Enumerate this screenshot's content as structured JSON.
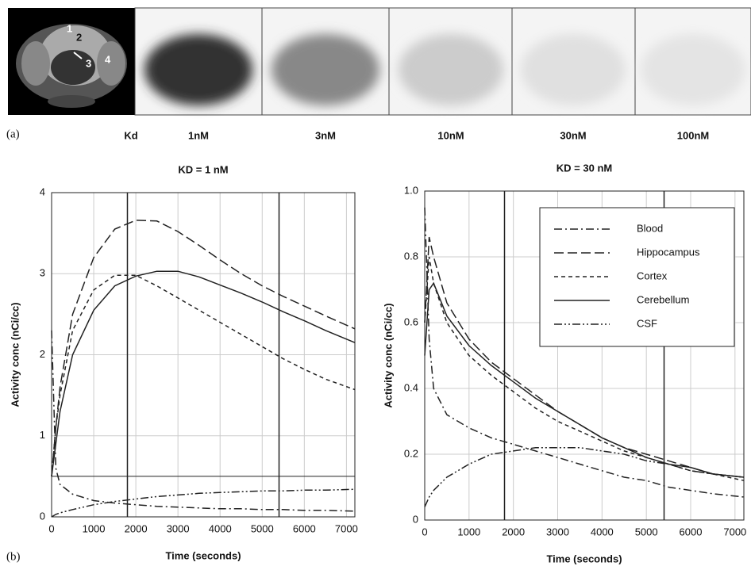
{
  "image_panel": {
    "label": "(a)",
    "captions": [
      "Kd",
      "1nM",
      "3nM",
      "10nM",
      "30nM",
      "100nM"
    ],
    "region_numbers": [
      "1",
      "2",
      "3",
      "4"
    ]
  },
  "plot_panel_label": "(b)",
  "chart_data": [
    {
      "type": "line",
      "title": "KD = 1 nM",
      "x_label": "Time (seconds)",
      "y_label": "Activity conc (nCi/cc)",
      "x": [
        0,
        100,
        200,
        500,
        1000,
        1500,
        2000,
        2500,
        3000,
        3500,
        4000,
        4500,
        5000,
        5500,
        6000,
        6500,
        7200
      ],
      "xlim": [
        0,
        7200
      ],
      "xticks": [
        0,
        1000,
        2000,
        3000,
        4000,
        5000,
        6000,
        7000
      ],
      "ylim": [
        0,
        4
      ],
      "yticks": [
        0,
        1,
        2,
        3,
        4
      ],
      "grid": true,
      "legend": false,
      "vlines": [
        1800,
        5400
      ],
      "hlines": [
        0.5
      ],
      "series": [
        {
          "name": "Blood",
          "color": "#222222",
          "dash": "dash-dot",
          "values": [
            2.3,
            0.6,
            0.4,
            0.28,
            0.2,
            0.17,
            0.15,
            0.13,
            0.12,
            0.11,
            0.1,
            0.1,
            0.09,
            0.09,
            0.08,
            0.08,
            0.07
          ]
        },
        {
          "name": "Hippocampus",
          "color": "#222222",
          "dash": "long-dash",
          "values": [
            0.5,
            1.1,
            1.6,
            2.5,
            3.2,
            3.55,
            3.66,
            3.65,
            3.52,
            3.35,
            3.17,
            3.0,
            2.85,
            2.72,
            2.6,
            2.48,
            2.32
          ]
        },
        {
          "name": "Cortex",
          "color": "#222222",
          "dash": "short-dash",
          "values": [
            0.5,
            1.1,
            1.5,
            2.3,
            2.8,
            2.98,
            2.98,
            2.85,
            2.7,
            2.55,
            2.4,
            2.25,
            2.1,
            1.95,
            1.82,
            1.7,
            1.57
          ]
        },
        {
          "name": "Cerebellum",
          "color": "#222222",
          "dash": "solid",
          "values": [
            0.5,
            0.9,
            1.3,
            2.0,
            2.55,
            2.85,
            2.97,
            3.03,
            3.03,
            2.96,
            2.86,
            2.76,
            2.65,
            2.53,
            2.42,
            2.3,
            2.15
          ]
        },
        {
          "name": "CSF",
          "color": "#222222",
          "dash": "dash-dot-dot",
          "values": [
            0,
            0.03,
            0.05,
            0.09,
            0.15,
            0.19,
            0.22,
            0.25,
            0.27,
            0.29,
            0.3,
            0.31,
            0.32,
            0.32,
            0.33,
            0.33,
            0.34
          ]
        }
      ]
    },
    {
      "type": "line",
      "title": "KD = 30 nM",
      "x_label": "Time (seconds)",
      "y_label": "Activity conc (nCi/cc)",
      "x": [
        0,
        100,
        200,
        500,
        1000,
        1500,
        2000,
        2500,
        3000,
        3500,
        4000,
        4500,
        5000,
        5500,
        6000,
        6500,
        7200
      ],
      "xlim": [
        0,
        7200
      ],
      "xticks": [
        0,
        1000,
        2000,
        3000,
        4000,
        5000,
        6000,
        7000
      ],
      "ylim": [
        0,
        1
      ],
      "yticks": [
        0,
        0.2,
        0.4,
        0.6,
        0.8,
        {
          "value": 1,
          "label": "1.0"
        }
      ],
      "grid": true,
      "legend": true,
      "legend_position": "upper-right",
      "vlines": [
        1800,
        5400
      ],
      "series": [
        {
          "name": "Blood",
          "color": "#222222",
          "dash": "dash-dot",
          "values": [
            0.95,
            0.55,
            0.4,
            0.32,
            0.28,
            0.25,
            0.23,
            0.21,
            0.19,
            0.17,
            0.15,
            0.13,
            0.12,
            0.1,
            0.09,
            0.08,
            0.07
          ]
        },
        {
          "name": "Hippocampus",
          "color": "#222222",
          "dash": "long-dash",
          "values": [
            0.6,
            0.86,
            0.8,
            0.66,
            0.55,
            0.48,
            0.43,
            0.38,
            0.33,
            0.29,
            0.25,
            0.22,
            0.2,
            0.18,
            0.16,
            0.14,
            0.13
          ]
        },
        {
          "name": "Cortex",
          "color": "#222222",
          "dash": "short-dash",
          "values": [
            0.6,
            0.8,
            0.72,
            0.6,
            0.5,
            0.44,
            0.39,
            0.34,
            0.3,
            0.27,
            0.24,
            0.21,
            0.19,
            0.17,
            0.15,
            0.14,
            0.12
          ]
        },
        {
          "name": "Cerebellum",
          "color": "#222222",
          "dash": "solid",
          "values": [
            0.5,
            0.7,
            0.72,
            0.62,
            0.53,
            0.47,
            0.42,
            0.37,
            0.33,
            0.29,
            0.25,
            0.22,
            0.19,
            0.17,
            0.16,
            0.14,
            0.13
          ]
        },
        {
          "name": "CSF",
          "color": "#222222",
          "dash": "dash-dot-dot",
          "values": [
            0.04,
            0.07,
            0.09,
            0.13,
            0.17,
            0.2,
            0.21,
            0.22,
            0.22,
            0.22,
            0.21,
            0.2,
            0.18,
            0.17,
            0.15,
            0.14,
            0.13
          ]
        }
      ]
    }
  ]
}
